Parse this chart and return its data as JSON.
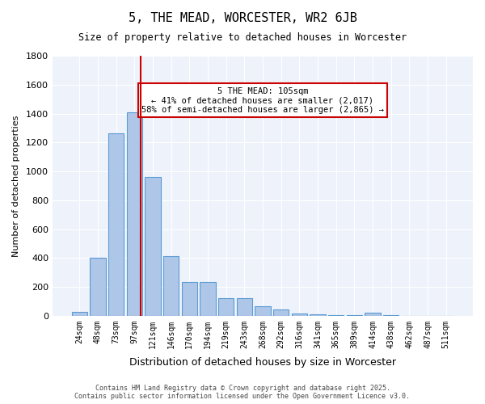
{
  "title": "5, THE MEAD, WORCESTER, WR2 6JB",
  "subtitle": "Size of property relative to detached houses in Worcester",
  "xlabel": "Distribution of detached houses by size in Worcester",
  "ylabel": "Number of detached properties",
  "bar_color": "#aec6e8",
  "bar_edge_color": "#5b9bd5",
  "background_color": "#eef3fb",
  "grid_color": "#ffffff",
  "categories": [
    "24sqm",
    "48sqm",
    "73sqm",
    "97sqm",
    "121sqm",
    "146sqm",
    "170sqm",
    "194sqm",
    "219sqm",
    "243sqm",
    "268sqm",
    "292sqm",
    "316sqm",
    "341sqm",
    "365sqm",
    "389sqm",
    "414sqm",
    "438sqm",
    "462sqm",
    "487sqm",
    "511sqm"
  ],
  "values": [
    25,
    400,
    1265,
    1410,
    960,
    415,
    235,
    235,
    120,
    120,
    65,
    45,
    15,
    10,
    5,
    5,
    20,
    5,
    0,
    0,
    0
  ],
  "vline_x": 3.5,
  "vline_color": "#cc0000",
  "annotation_text": "5 THE MEAD: 105sqm\n← 41% of detached houses are smaller (2,017)\n58% of semi-detached houses are larger (2,865) →",
  "annotation_box_color": "#ffffff",
  "annotation_box_edge_color": "#cc0000",
  "ylim": [
    0,
    1800
  ],
  "yticks": [
    0,
    200,
    400,
    600,
    800,
    1000,
    1200,
    1400,
    1600,
    1800
  ],
  "footnote": "Contains HM Land Registry data © Crown copyright and database right 2025.\nContains public sector information licensed under the Open Government Licence v3.0.",
  "figsize": [
    6.0,
    5.0
  ],
  "dpi": 100
}
